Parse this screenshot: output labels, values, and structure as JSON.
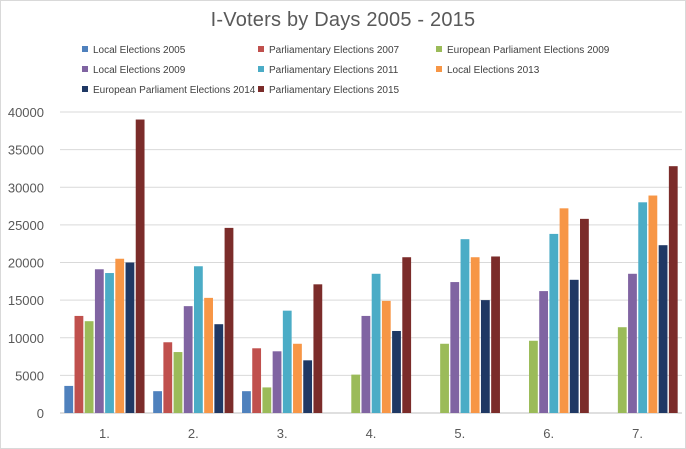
{
  "chart_data": {
    "type": "bar",
    "title": "I-Voters by Days 2005 - 2015",
    "xlabel": "",
    "ylabel": "",
    "ylim": [
      0,
      40000
    ],
    "yticks": [
      "0",
      "5000",
      "10000",
      "15000",
      "20000",
      "25000",
      "30000",
      "35000",
      "40000"
    ],
    "grid": true,
    "legend_position": "top",
    "categories": [
      "1.",
      "2.",
      "3.",
      "4.",
      "5.",
      "6.",
      "7."
    ],
    "series": [
      {
        "name": "Local Elections 2005",
        "color": "#4f81bd",
        "values": [
          3600,
          2900,
          2900,
          null,
          null,
          null,
          null
        ]
      },
      {
        "name": "Parliamentary Elections 2007",
        "color": "#c0504d",
        "values": [
          12900,
          9400,
          8600,
          null,
          null,
          null,
          null
        ]
      },
      {
        "name": "European Parliament Elections 2009",
        "color": "#9bbb59",
        "values": [
          12200,
          8100,
          3400,
          5100,
          9200,
          9600,
          11400
        ]
      },
      {
        "name": "Local Elections 2009",
        "color": "#8064a2",
        "values": [
          19100,
          14200,
          8200,
          12900,
          17400,
          16200,
          18500
        ]
      },
      {
        "name": "Parliamentary Elections 2011",
        "color": "#4bacc6",
        "values": [
          18600,
          19500,
          13600,
          18500,
          23100,
          23800,
          28000
        ]
      },
      {
        "name": "Local Elections 2013",
        "color": "#f79646",
        "values": [
          20500,
          15300,
          9200,
          14900,
          20700,
          27200,
          28900
        ]
      },
      {
        "name": "European Parliament Elections 2014",
        "color": "#1f3864",
        "values": [
          20000,
          11800,
          7000,
          10900,
          15000,
          17700,
          22300
        ]
      },
      {
        "name": "Parliamentary Elections 2015",
        "color": "#7b2c2a",
        "values": [
          39000,
          24600,
          17100,
          20700,
          20800,
          25800,
          32800
        ]
      }
    ]
  }
}
